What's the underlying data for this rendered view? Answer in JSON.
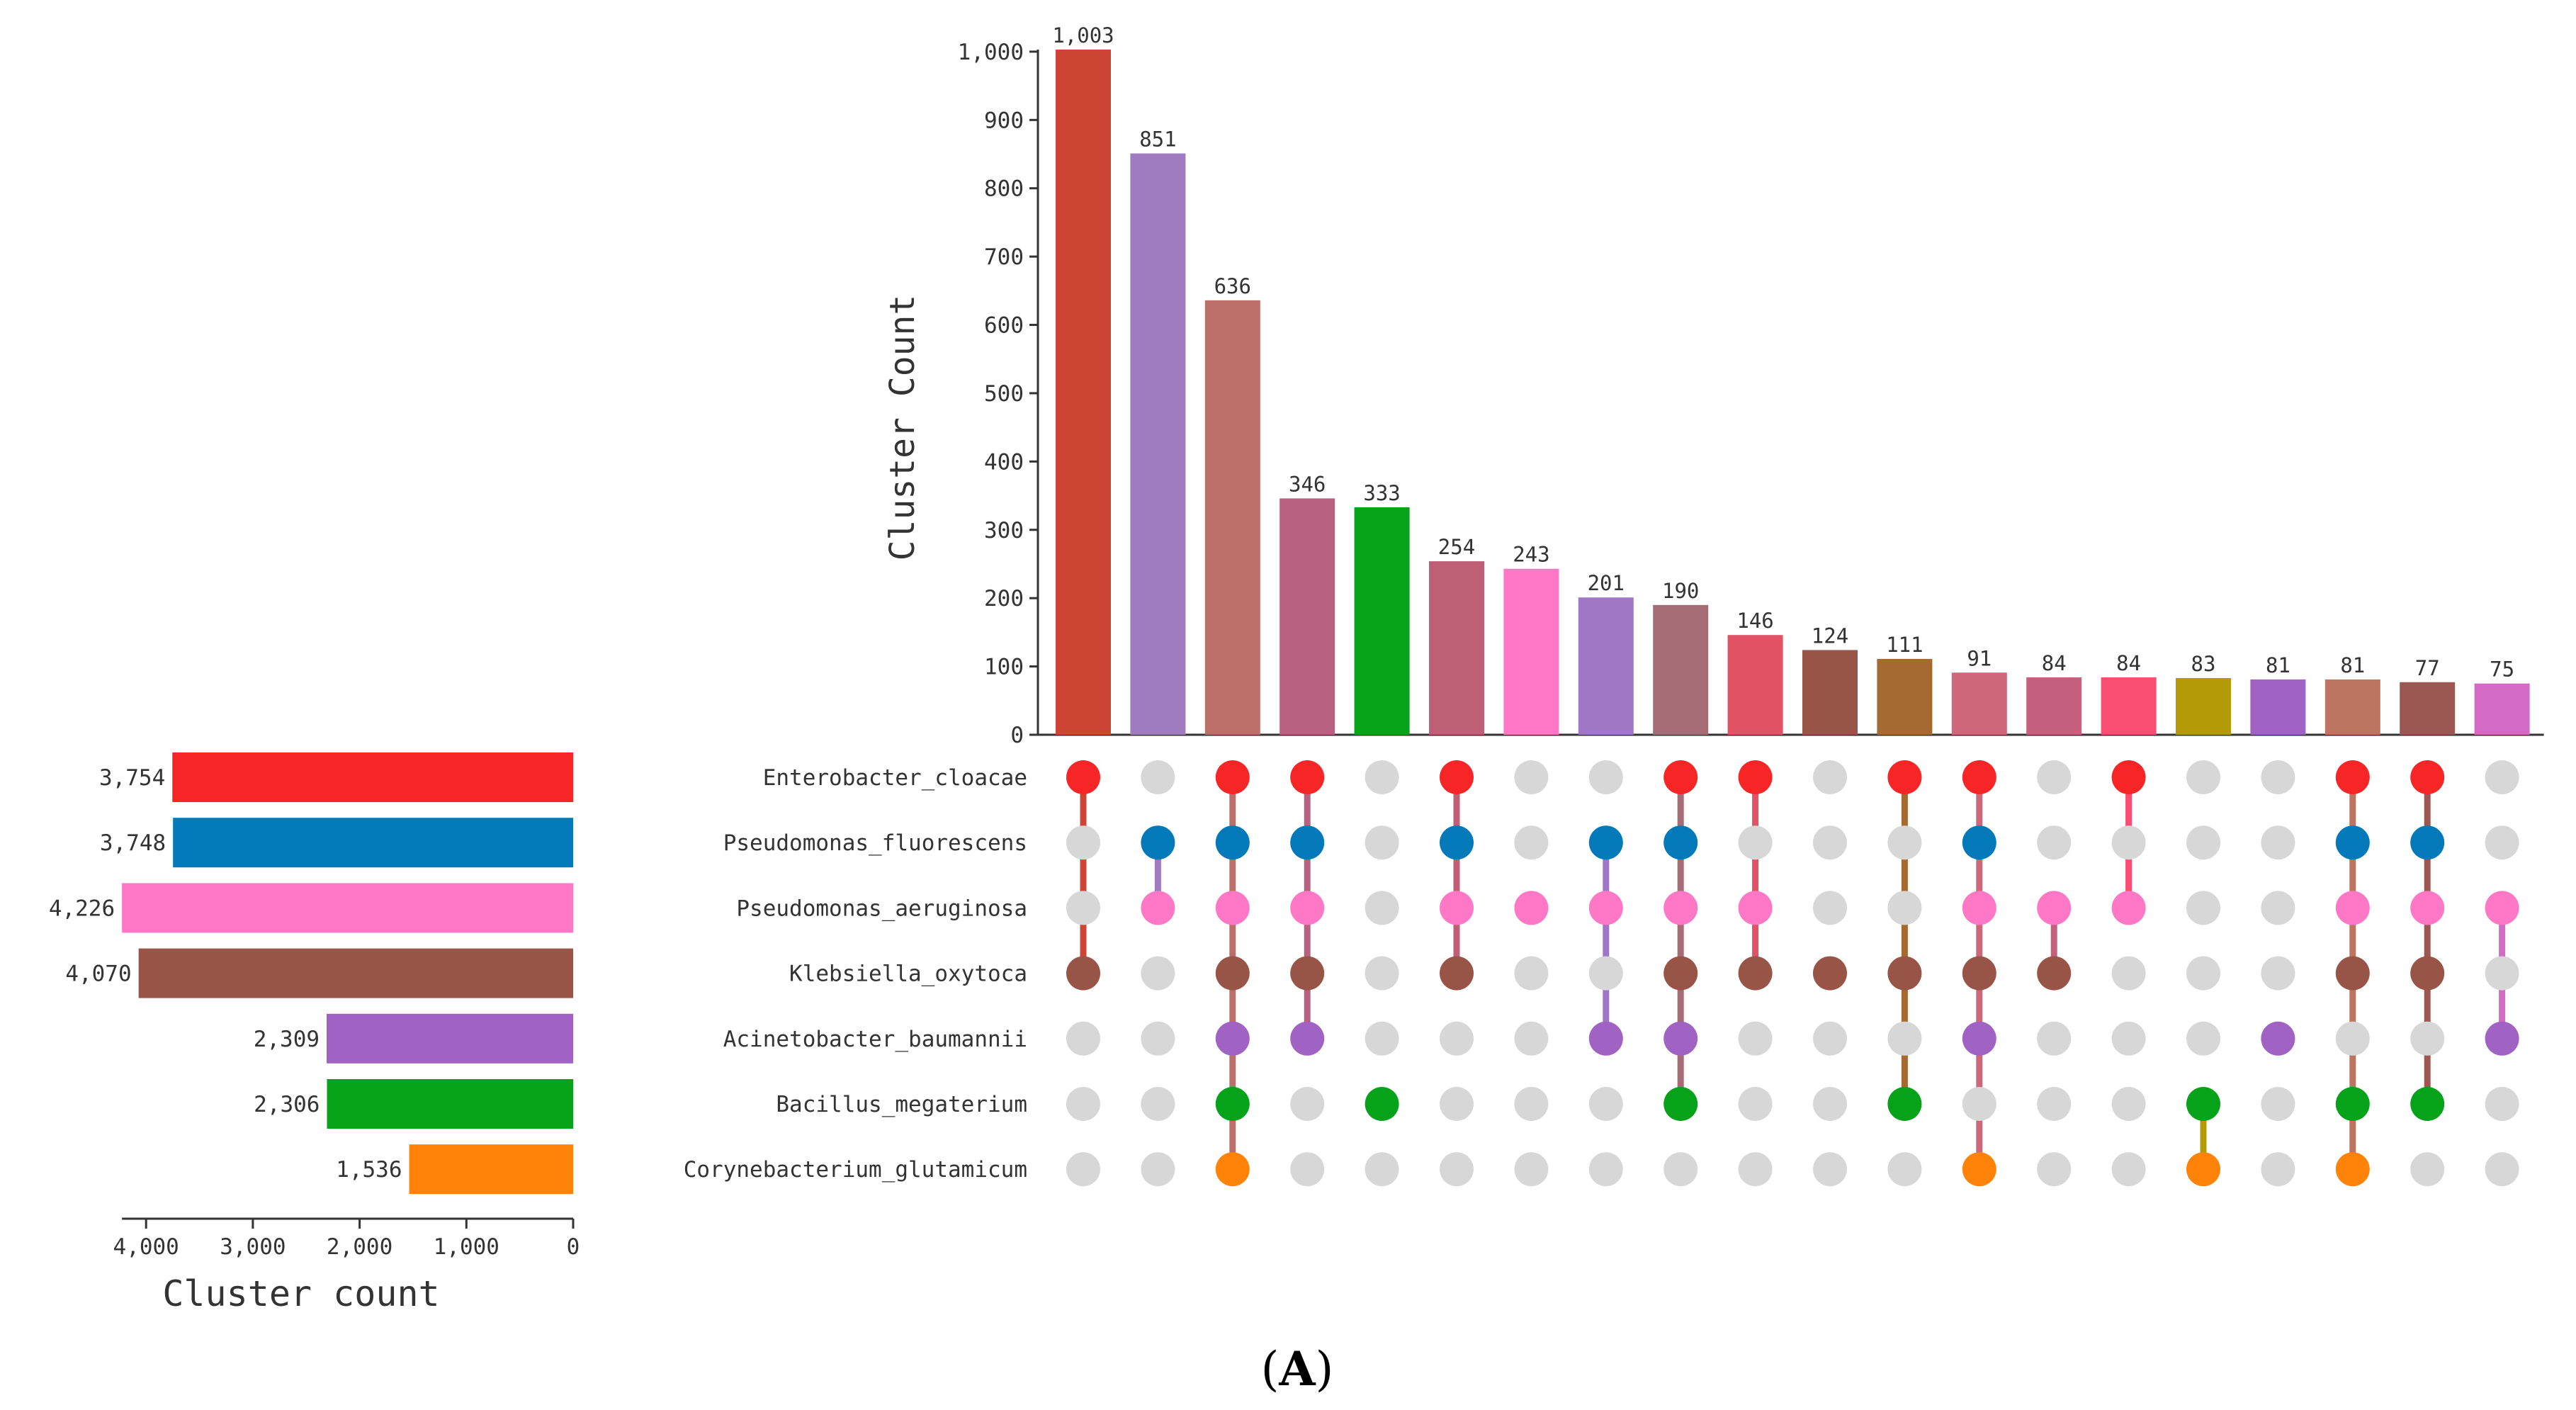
{
  "panel_label": {
    "open": "(",
    "letter": "A",
    "close": ")"
  },
  "chart_data": {
    "type": "bar",
    "subtype": "upset",
    "intersection_axis": {
      "label": "Cluster Count",
      "ylim": [
        0,
        1003
      ],
      "ticks": [
        0,
        100,
        200,
        300,
        400,
        500,
        600,
        700,
        800,
        900,
        1000
      ],
      "tick_labels": [
        "0",
        "100",
        "200",
        "300",
        "400",
        "500",
        "600",
        "700",
        "800",
        "900",
        "1,000"
      ]
    },
    "set_size_axis": {
      "label": "Cluster count",
      "xlim": [
        0,
        4226
      ],
      "ticks": [
        4000,
        3000,
        2000,
        1000,
        0
      ],
      "tick_labels": [
        "4,000",
        "3,000",
        "2,000",
        "1,000",
        "0"
      ]
    },
    "sets": [
      {
        "name": "Enterobacter_cloacae",
        "size": 3754,
        "size_label": "3,754",
        "color": "#f62627"
      },
      {
        "name": "Pseudomonas_fluorescens",
        "size": 3748,
        "size_label": "3,748",
        "color": "#0379b9"
      },
      {
        "name": "Pseudomonas_aeruginosa",
        "size": 4226,
        "size_label": "4,226",
        "color": "#ff78c6"
      },
      {
        "name": "Klebsiella_oxytoca",
        "size": 4070,
        "size_label": "4,070",
        "color": "#985446"
      },
      {
        "name": "Acinetobacter_baumannii",
        "size": 2309,
        "size_label": "2,309",
        "color": "#a062c3"
      },
      {
        "name": "Bacillus_megaterium",
        "size": 2306,
        "size_label": "2,306",
        "color": "#06a31a"
      },
      {
        "name": "Corynebacterium_glutamicum",
        "size": 1536,
        "size_label": "1,536",
        "color": "#ff8308"
      }
    ],
    "intersections": [
      {
        "value": 1003,
        "label": "1,003",
        "color": "#cd4535",
        "sets": [
          0,
          3
        ]
      },
      {
        "value": 851,
        "label": "851",
        "color": "#a17bc0",
        "sets": [
          1,
          2
        ]
      },
      {
        "value": 636,
        "label": "636",
        "color": "#bc6f69",
        "sets": [
          0,
          1,
          2,
          3,
          4,
          5,
          6
        ]
      },
      {
        "value": 346,
        "label": "346",
        "color": "#b8607f",
        "sets": [
          0,
          1,
          2,
          3,
          4
        ]
      },
      {
        "value": 333,
        "label": "333",
        "color": "#06a31a",
        "sets": [
          5
        ]
      },
      {
        "value": 254,
        "label": "254",
        "color": "#bf5f76",
        "sets": [
          0,
          1,
          2,
          3
        ]
      },
      {
        "value": 243,
        "label": "243",
        "color": "#ff78c6",
        "sets": [
          2
        ]
      },
      {
        "value": 201,
        "label": "201",
        "color": "#a077c4",
        "sets": [
          1,
          2,
          4
        ]
      },
      {
        "value": 190,
        "label": "190",
        "color": "#a46c74",
        "sets": [
          0,
          1,
          2,
          3,
          4,
          5
        ]
      },
      {
        "value": 146,
        "label": "146",
        "color": "#e05264",
        "sets": [
          0,
          2,
          3
        ]
      },
      {
        "value": 124,
        "label": "124",
        "color": "#985446",
        "sets": [
          3
        ]
      },
      {
        "value": 111,
        "label": "111",
        "color": "#a56a31",
        "sets": [
          0,
          3,
          5
        ]
      },
      {
        "value": 91,
        "label": "91",
        "color": "#cd6779",
        "sets": [
          0,
          1,
          2,
          3,
          4,
          6
        ]
      },
      {
        "value": 84,
        "label": "84",
        "color": "#c6607f",
        "sets": [
          2,
          3
        ]
      },
      {
        "value": 84,
        "label": "84",
        "color": "#f94e72",
        "sets": [
          0,
          2
        ]
      },
      {
        "value": 83,
        "label": "83",
        "color": "#b49a06",
        "sets": [
          5,
          6
        ]
      },
      {
        "value": 81,
        "label": "81",
        "color": "#a062c3",
        "sets": [
          4
        ]
      },
      {
        "value": 81,
        "label": "81",
        "color": "#bc7560",
        "sets": [
          0,
          1,
          2,
          3,
          5,
          6
        ]
      },
      {
        "value": 77,
        "label": "77",
        "color": "#9c5752",
        "sets": [
          0,
          1,
          2,
          3,
          5
        ]
      },
      {
        "value": 75,
        "label": "75",
        "color": "#d36bc4",
        "sets": [
          2,
          4
        ]
      }
    ],
    "inactive_dot_color": "#d7d7d7"
  }
}
